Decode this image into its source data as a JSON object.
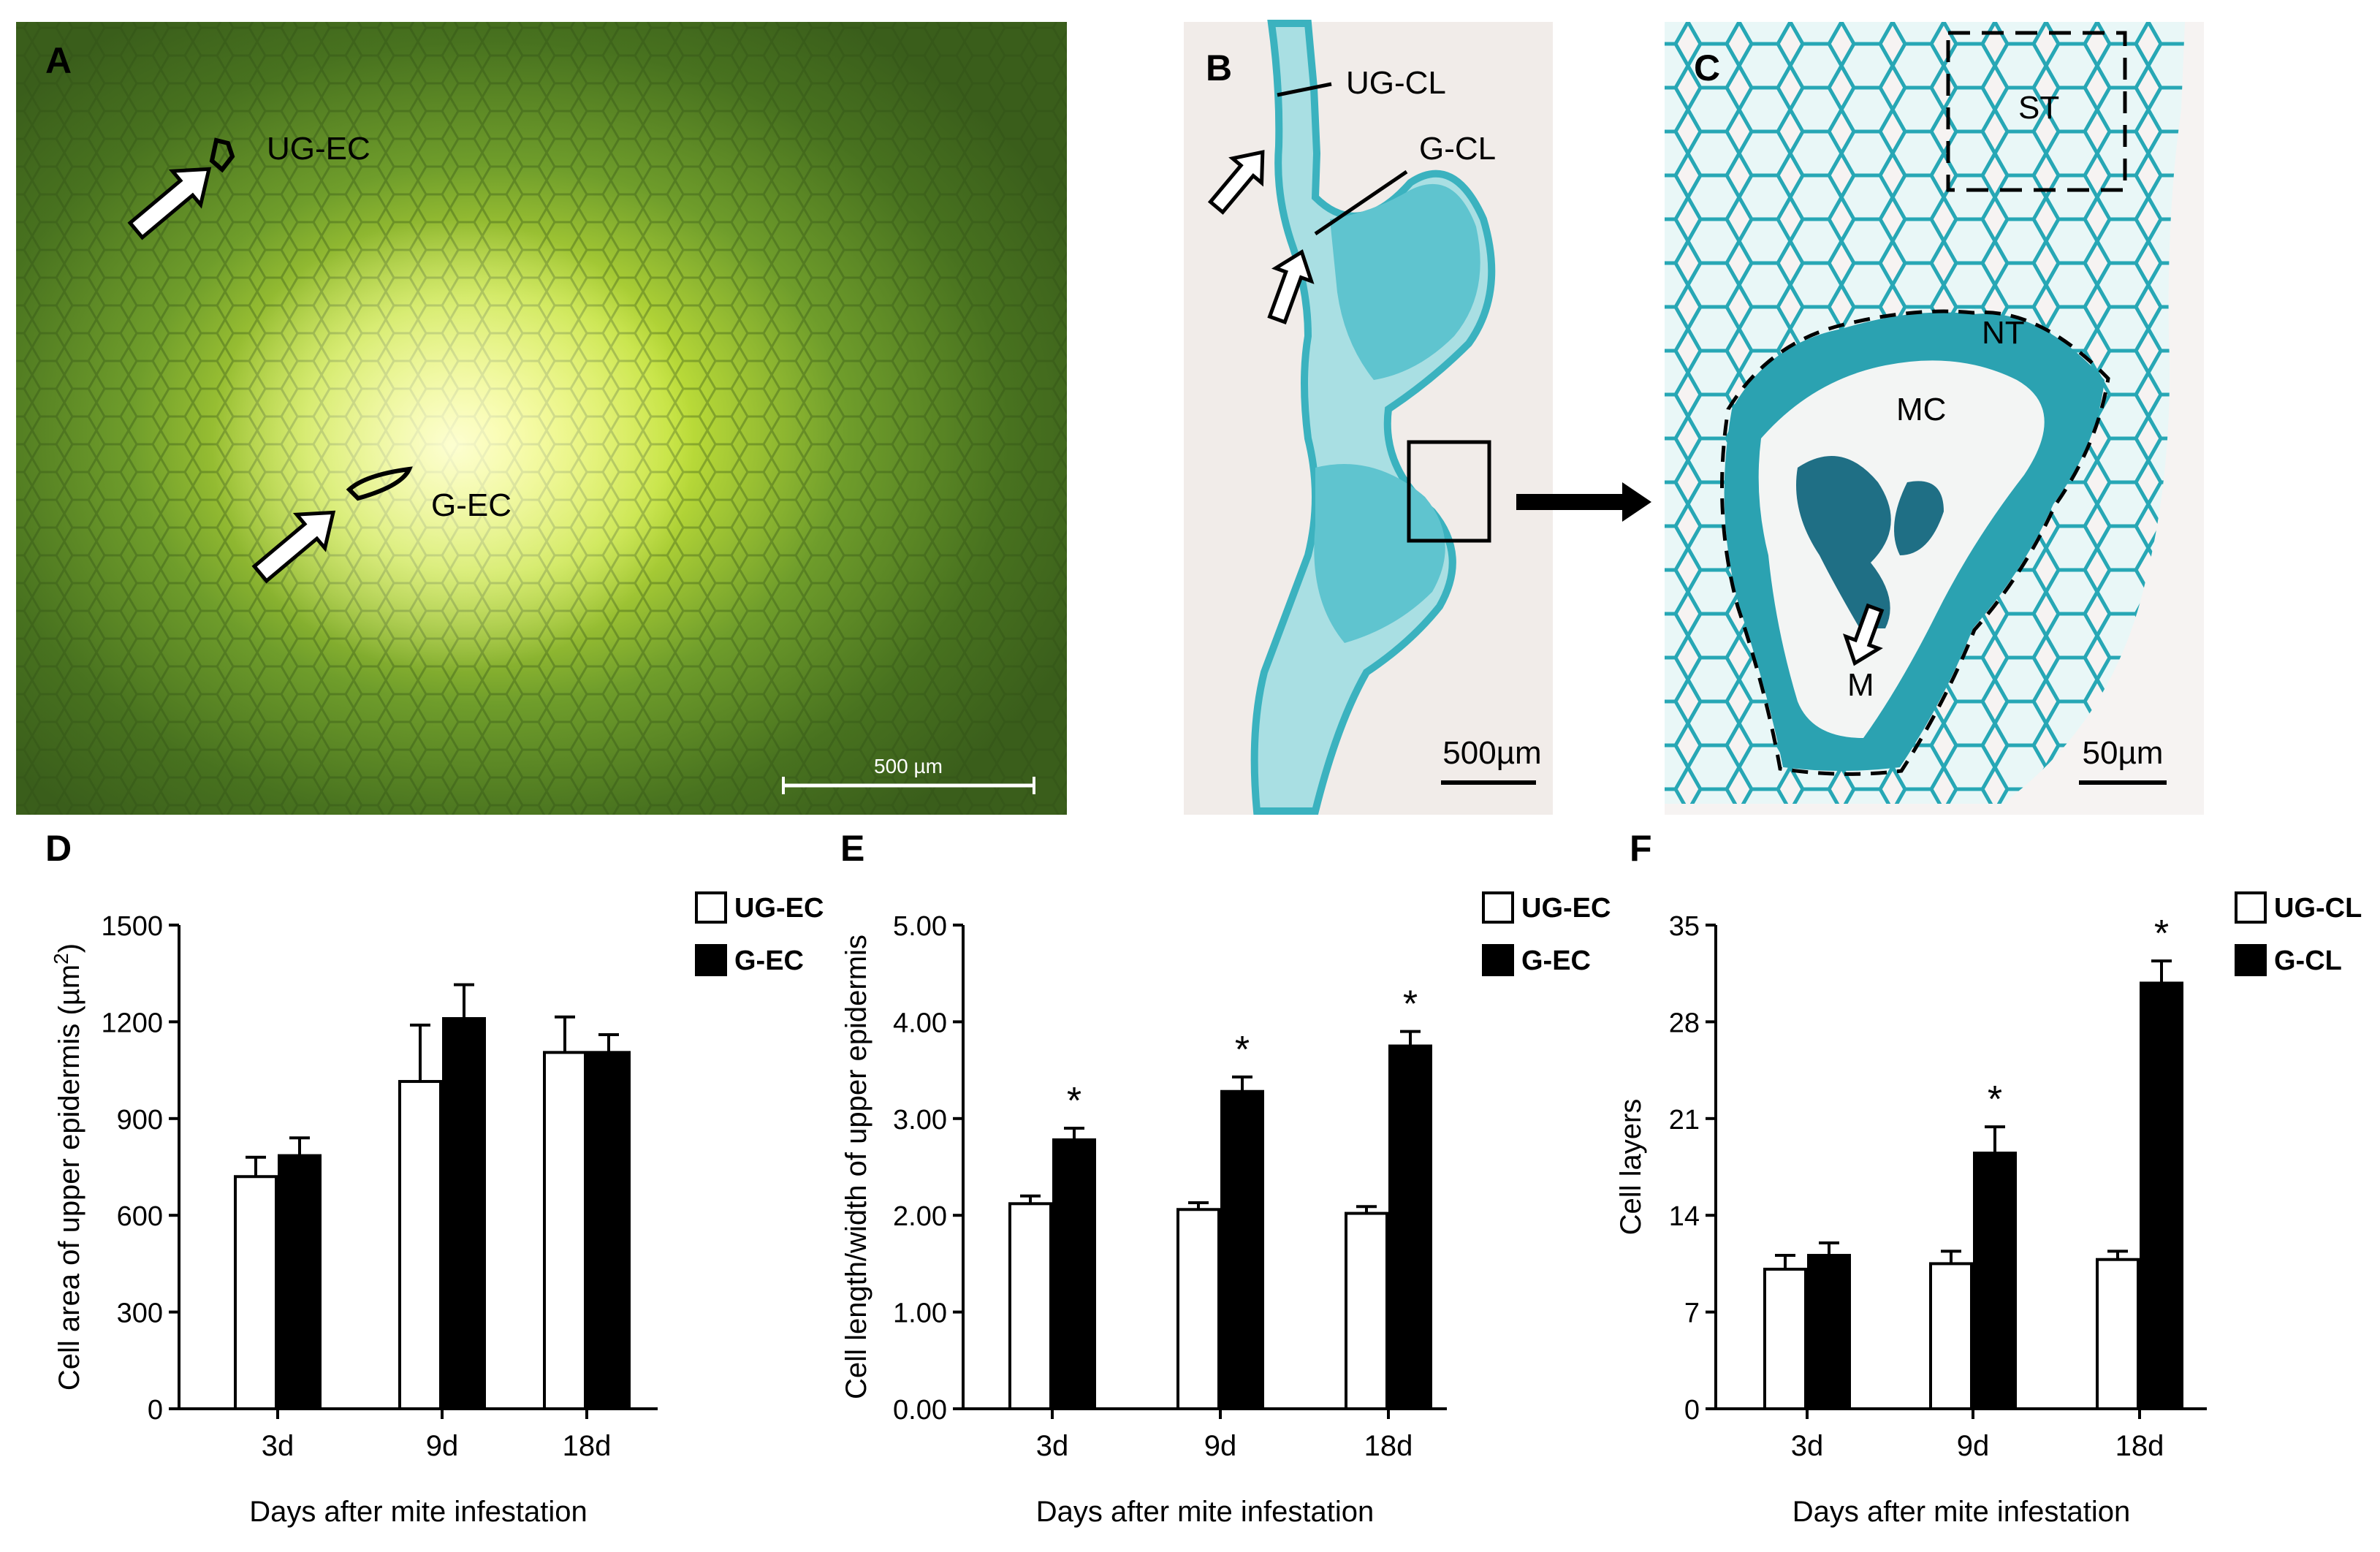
{
  "panels": {
    "A": {
      "letter": "A",
      "labels": [
        "UG-EC",
        "G-EC"
      ],
      "scalebar": "500 µm"
    },
    "B": {
      "letter": "B",
      "labels": [
        "UG-CL",
        "G-CL"
      ],
      "scalebar": "500µm"
    },
    "C": {
      "letter": "C",
      "labels": [
        "ST",
        "NT",
        "MC",
        "M"
      ],
      "scalebar": "50µm"
    }
  },
  "colors": {
    "leaf_dark": "#3f6a1f",
    "leaf_light": "#d9f03a",
    "section_bg": "#f1ece9",
    "tissue": "#3bb2bf",
    "bar_fill_filled": "#000000",
    "bar_fill_open": "#ffffff"
  },
  "chart_data": [
    {
      "panel": "D",
      "type": "bar",
      "categories": [
        "3d",
        "9d",
        "18d"
      ],
      "xlabel": "Days after mite infestation",
      "ylabel": "Cell area of upper epidermis (µm²)",
      "ylim": [
        0,
        1500
      ],
      "yticks": [
        "0",
        "300",
        "600",
        "900",
        "1200",
        "1500"
      ],
      "legend_position": "top-right",
      "series": [
        {
          "name": "UG-EC",
          "fill": "open",
          "values": [
            720,
            1015,
            1105
          ],
          "errors": [
            60,
            175,
            110
          ]
        },
        {
          "name": "G-EC",
          "fill": "filled",
          "values": [
            785,
            1210,
            1105
          ],
          "errors": [
            55,
            105,
            55
          ]
        }
      ],
      "annotations": [
        "",
        "",
        ""
      ]
    },
    {
      "panel": "E",
      "type": "bar",
      "categories": [
        "3d",
        "9d",
        "18d"
      ],
      "xlabel": "Days after mite infestation",
      "ylabel": "Cell length/width of upper epidermis",
      "ylim": [
        0,
        5
      ],
      "yticks": [
        "0.00",
        "1.00",
        "2.00",
        "3.00",
        "4.00",
        "5.00"
      ],
      "legend_position": "top-right",
      "series": [
        {
          "name": "UG-EC",
          "fill": "open",
          "values": [
            2.12,
            2.06,
            2.02
          ],
          "errors": [
            0.08,
            0.07,
            0.07
          ]
        },
        {
          "name": "G-EC",
          "fill": "filled",
          "values": [
            2.78,
            3.28,
            3.75
          ],
          "errors": [
            0.12,
            0.15,
            0.15
          ]
        }
      ],
      "annotations": [
        "*",
        "*",
        "*"
      ]
    },
    {
      "panel": "F",
      "type": "bar",
      "categories": [
        "3d",
        "9d",
        "18d"
      ],
      "xlabel": "Days after mite infestation",
      "ylabel": "Cell layers",
      "ylim": [
        0,
        35
      ],
      "yticks": [
        "0",
        "7",
        "14",
        "21",
        "28",
        "35"
      ],
      "legend_position": "top-right",
      "series": [
        {
          "name": "UG-CL",
          "fill": "open",
          "values": [
            10.1,
            10.5,
            10.8
          ],
          "errors": [
            1.0,
            0.9,
            0.6
          ]
        },
        {
          "name": "G-CL",
          "fill": "filled",
          "values": [
            11.1,
            18.5,
            30.8
          ],
          "errors": [
            0.9,
            1.9,
            1.6
          ]
        }
      ],
      "annotations": [
        "",
        "*",
        "*"
      ]
    }
  ],
  "chart_letters": [
    "D",
    "E",
    "F"
  ]
}
